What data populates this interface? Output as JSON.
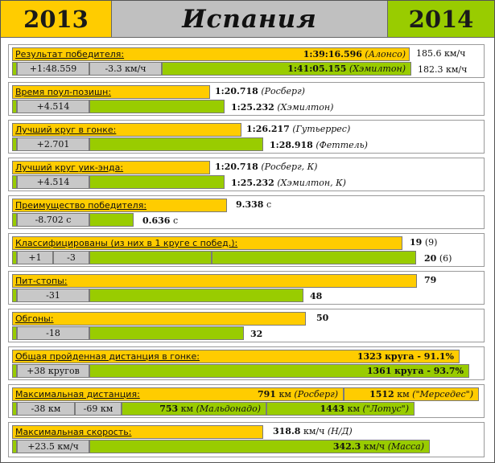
{
  "header": {
    "year_left": "2013",
    "title": "Испания",
    "year_right": "2014"
  },
  "colors": {
    "yellow": "#ffcc00",
    "green": "#99cc00",
    "gray": "#c8c8c8"
  },
  "winner": {
    "label": "Результат победителя:",
    "time_2013": "1:39:16.596",
    "driver_2013": "(Алонсо)",
    "speed_2013": "185.6 км/ч",
    "diff_time": "+1:48.559",
    "diff_speed": "-3.3 км/ч",
    "time_2014": "1:41:05.155",
    "driver_2014": "(Хэмилтон)",
    "speed_2014": "182.3 км/ч"
  },
  "pole": {
    "label": "Время поул-позишн:",
    "time_2013": "1:20.718",
    "driver_2013": "(Росберг)",
    "diff": "+4.514",
    "time_2014": "1:25.232",
    "driver_2014": "(Хэмилтон)"
  },
  "race_lap": {
    "label": "Лучший круг в гонке:",
    "time_2013": "1:26.217",
    "driver_2013": "(Гутьеррес)",
    "diff": "+2.701",
    "time_2014": "1:28.918",
    "driver_2014": "(Феттель)"
  },
  "weekend_lap": {
    "label": "Лучший круг уик-энда:",
    "time_2013": "1:20.718",
    "driver_2013": "(Росберг, К)",
    "diff": "+4.514",
    "time_2014": "1:25.232",
    "driver_2014": "(Хэмилтон, К)"
  },
  "margin": {
    "label": "Преимущество победителя:",
    "val_2013": "9.338",
    "unit_2013": "с",
    "diff": "-8.702 с",
    "val_2014": "0.636",
    "unit_2014": "с"
  },
  "classified": {
    "label": "Классифицированы (из них в 1 круге с побед.):",
    "val_2013": "19",
    "sub_2013": "(9)",
    "diff_a": "+1",
    "diff_b": "-3",
    "val_2014": "20",
    "sub_2014": "(6)"
  },
  "pitstops": {
    "label": "Пит-стопы:",
    "val_2013": "79",
    "diff": "-31",
    "val_2014": "48"
  },
  "overtakes": {
    "label": "Обгоны:",
    "val_2013": "50",
    "diff": "-18",
    "val_2014": "32"
  },
  "distance": {
    "label": "Общая пройденная дистанция в гонке:",
    "laps_2013": "1323",
    "text_2013": "круга - 91.1%",
    "diff": "+38 кругов",
    "laps_2014": "1361",
    "text_2014": "круга - 93.7%"
  },
  "max_distance": {
    "label": "Максимальная дистанция:",
    "a_val_2013": "791",
    "a_unit_2013": "км",
    "a_name_2013": "(Росберг)",
    "b_val_2013": "1512",
    "b_unit_2013": "км",
    "b_name_2013": "(\"Мерседес\")",
    "diff_a": "-38 км",
    "diff_b": "-69 км",
    "a_val_2014": "753",
    "a_unit_2014": "км",
    "a_name_2014": "(Мальдонадо)",
    "b_val_2014": "1443",
    "b_unit_2014": "км",
    "b_name_2014": "(\"Лотус\")"
  },
  "max_speed": {
    "label": "Максимальная скорость:",
    "val_2013": "318.8",
    "unit_2013": "км/ч",
    "name_2013": "(Н/Д)",
    "diff": "+23.5 км/ч",
    "val_2014": "342.3",
    "unit_2014": "км/ч",
    "name_2014": "(Масса)"
  }
}
